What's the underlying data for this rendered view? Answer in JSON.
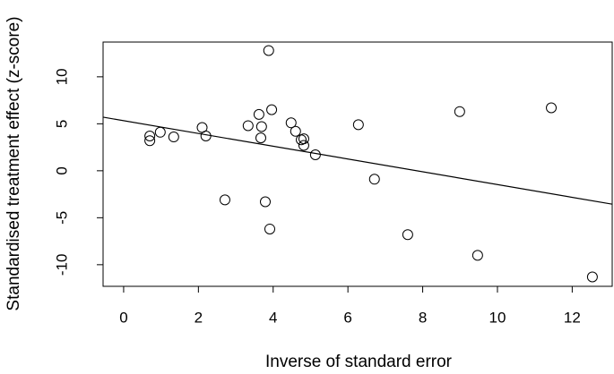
{
  "chart_data": {
    "type": "scatter",
    "x_label": "Inverse of standard error",
    "y_label": "Standardised treatment effect (z-score)",
    "x": [
      0.7,
      0.7,
      0.98,
      1.34,
      2.1,
      2.2,
      2.71,
      3.33,
      3.62,
      3.69,
      3.67,
      3.79,
      3.88,
      3.91,
      3.96,
      4.48,
      4.6,
      4.75,
      4.82,
      4.82,
      5.13,
      6.28,
      6.71,
      7.6,
      8.99,
      9.47,
      11.44,
      12.54
    ],
    "values": [
      3.7,
      3.2,
      4.1,
      3.6,
      4.6,
      3.7,
      -3.1,
      4.8,
      6.0,
      4.7,
      3.5,
      -3.3,
      12.8,
      -6.2,
      6.5,
      5.1,
      4.2,
      3.3,
      3.4,
      2.7,
      1.7,
      4.9,
      -0.9,
      -6.8,
      6.3,
      -9.0,
      6.7,
      -11.3
    ],
    "fit": {
      "intercept": 5.33,
      "slope": -0.68
    },
    "xlim": [
      -0.55,
      13.07
    ],
    "ylim": [
      -12.3,
      13.7
    ],
    "xticks": [
      0,
      2,
      4,
      6,
      8,
      10,
      12
    ],
    "yticks": [
      -10,
      -5,
      0,
      5,
      10
    ],
    "color": "#000000"
  }
}
